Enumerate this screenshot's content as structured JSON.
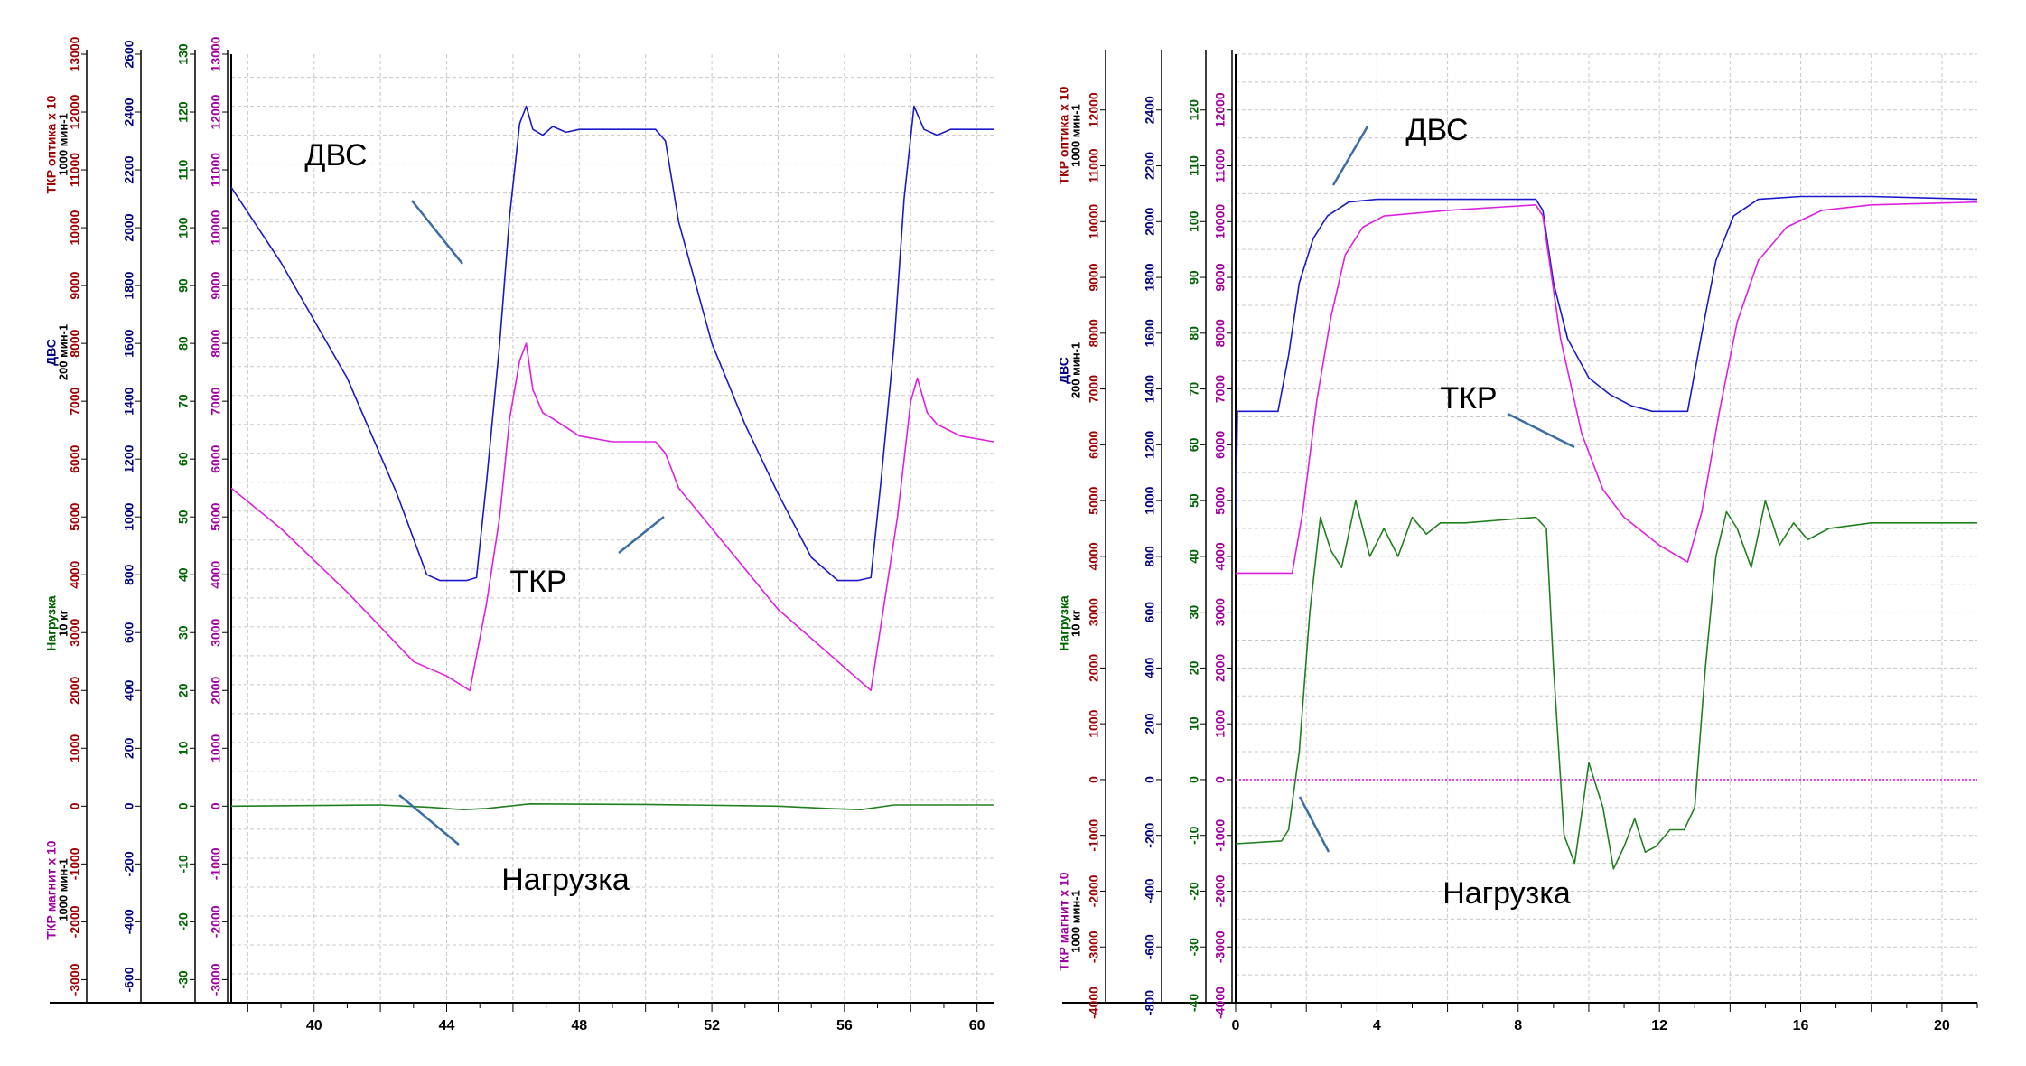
{
  "chart_data": [
    {
      "type": "line",
      "x": {
        "ticks": [
          40,
          44,
          48,
          52,
          56,
          60
        ],
        "range": [
          37.5,
          60.5
        ]
      },
      "axes": [
        {
          "name": "ticks_tkr_optic",
          "title": [
            "ТКР оптика x 10",
            "1000 мин-1"
          ],
          "color": "#a00000",
          "range": [
            -3400,
            13000
          ],
          "ticks": [
            -3000,
            -2000,
            -1000,
            0,
            1000,
            2000,
            3000,
            4000,
            5000,
            6000,
            7000,
            8000,
            9000,
            10000,
            11000,
            12000,
            13000
          ]
        },
        {
          "name": "ticks_dvs",
          "title": [
            "ДВС",
            "200 мин-1"
          ],
          "color": "#000080",
          "range": [
            -680,
            2600
          ],
          "ticks": [
            -600,
            -400,
            -200,
            0,
            200,
            400,
            600,
            800,
            1000,
            1200,
            1400,
            1600,
            1800,
            2000,
            2200,
            2400,
            2600
          ]
        },
        {
          "name": "ticks_load",
          "title": [
            "Нагрузка",
            "10 кг"
          ],
          "color": "#006400",
          "range": [
            -34,
            130
          ],
          "ticks": [
            -30,
            -20,
            -10,
            0,
            10,
            20,
            30,
            40,
            50,
            60,
            70,
            80,
            90,
            100,
            110,
            120,
            130
          ]
        },
        {
          "name": "ticks_tkr_magnit",
          "title": [
            "ТКР магнит x 10",
            "1000 мин-1"
          ],
          "color": "#a000a0",
          "range": [
            -3400,
            13000
          ],
          "ticks": [
            -3000,
            -2000,
            -1000,
            0,
            1000,
            2000,
            3000,
            4000,
            5000,
            6000,
            7000,
            8000,
            9000,
            10000,
            11000,
            12000,
            13000
          ]
        }
      ],
      "series": [
        {
          "name": "ДВС",
          "color": "#1a1acc",
          "axis": 0,
          "points": [
            [
              37.5,
              10700
            ],
            [
              39,
              9400
            ],
            [
              41,
              7400
            ],
            [
              42.5,
              5400
            ],
            [
              43.4,
              4000
            ],
            [
              43.8,
              3900
            ],
            [
              44.2,
              3900
            ],
            [
              44.6,
              3900
            ],
            [
              44.9,
              3950
            ],
            [
              45.2,
              5600
            ],
            [
              45.6,
              8000
            ],
            [
              45.9,
              10200
            ],
            [
              46.2,
              11800
            ],
            [
              46.4,
              12100
            ],
            [
              46.6,
              11700
            ],
            [
              46.9,
              11600
            ],
            [
              47.2,
              11750
            ],
            [
              47.6,
              11650
            ],
            [
              48,
              11700
            ],
            [
              49,
              11700
            ],
            [
              50.3,
              11700
            ],
            [
              50.6,
              11500
            ],
            [
              51,
              10100
            ],
            [
              52,
              8000
            ],
            [
              53,
              6600
            ],
            [
              54,
              5400
            ],
            [
              55,
              4300
            ],
            [
              55.8,
              3900
            ],
            [
              56.4,
              3900
            ],
            [
              56.8,
              3950
            ],
            [
              57.1,
              5600
            ],
            [
              57.5,
              8000
            ],
            [
              57.8,
              10500
            ],
            [
              58.1,
              12100
            ],
            [
              58.4,
              11700
            ],
            [
              58.8,
              11600
            ],
            [
              59.2,
              11700
            ],
            [
              60,
              11700
            ],
            [
              60.5,
              11700
            ]
          ]
        },
        {
          "name": "ТКР",
          "color": "#e020e0",
          "axis": 0,
          "points": [
            [
              37.5,
              5500
            ],
            [
              39,
              4800
            ],
            [
              41,
              3700
            ],
            [
              42,
              3100
            ],
            [
              43,
              2500
            ],
            [
              44,
              2250
            ],
            [
              44.7,
              2000
            ],
            [
              45.2,
              3500
            ],
            [
              45.6,
              5000
            ],
            [
              45.9,
              6700
            ],
            [
              46.2,
              7700
            ],
            [
              46.4,
              8000
            ],
            [
              46.6,
              7200
            ],
            [
              46.9,
              6800
            ],
            [
              47.2,
              6700
            ],
            [
              48,
              6400
            ],
            [
              49,
              6300
            ],
            [
              50.3,
              6300
            ],
            [
              50.6,
              6100
            ],
            [
              51,
              5500
            ],
            [
              52,
              4800
            ],
            [
              53,
              4100
            ],
            [
              54,
              3400
            ],
            [
              55,
              2900
            ],
            [
              56,
              2400
            ],
            [
              56.8,
              2000
            ],
            [
              57.2,
              3500
            ],
            [
              57.6,
              5000
            ],
            [
              58.0,
              7000
            ],
            [
              58.2,
              7400
            ],
            [
              58.5,
              6800
            ],
            [
              58.8,
              6600
            ],
            [
              59.5,
              6400
            ],
            [
              60.5,
              6300
            ]
          ]
        },
        {
          "name": "Нагрузка",
          "color": "#208020",
          "axis": 0,
          "points": [
            [
              37.5,
              0
            ],
            [
              42,
              20
            ],
            [
              43.5,
              -20
            ],
            [
              44.5,
              -60
            ],
            [
              45.2,
              -40
            ],
            [
              46.5,
              40
            ],
            [
              50,
              30
            ],
            [
              54,
              0
            ],
            [
              55.5,
              -40
            ],
            [
              56.5,
              -60
            ],
            [
              57.5,
              20
            ],
            [
              60.5,
              20
            ]
          ]
        }
      ],
      "annotations": [
        {
          "text": "ДВС"
        },
        {
          "text": "ТКР"
        },
        {
          "text": "Нагрузка"
        }
      ]
    },
    {
      "type": "line",
      "x": {
        "ticks": [
          0,
          4,
          8,
          12,
          16,
          20
        ],
        "range": [
          0,
          21
        ]
      },
      "axes": [
        {
          "name": "ticks_tkr_optic",
          "title": [
            "ТКР оптика x 10",
            "1000 мин-1"
          ],
          "color": "#a00000",
          "range": [
            -4000,
            13000
          ],
          "ticks": [
            -4000,
            -3000,
            -2000,
            -1000,
            0,
            1000,
            2000,
            3000,
            4000,
            5000,
            6000,
            7000,
            8000,
            9000,
            10000,
            11000,
            12000
          ]
        },
        {
          "name": "ticks_dvs",
          "title": [
            "ДВС",
            "200 мин-1"
          ],
          "color": "#000080",
          "range": [
            -800,
            2600
          ],
          "ticks": [
            -800,
            -600,
            -400,
            -200,
            0,
            200,
            400,
            600,
            800,
            1000,
            1200,
            1400,
            1600,
            1800,
            2000,
            2200,
            2400
          ]
        },
        {
          "name": "ticks_load",
          "title": [
            "Нагрузка",
            "10 кг"
          ],
          "color": "#006400",
          "range": [
            -40,
            130
          ],
          "ticks": [
            -40,
            -30,
            -20,
            -10,
            0,
            10,
            20,
            30,
            40,
            50,
            60,
            70,
            80,
            90,
            100,
            110,
            120
          ]
        },
        {
          "name": "ticks_tkr_magnit",
          "title": [
            "ТКР магнит x 10",
            "1000 мин-1"
          ],
          "color": "#a000a0",
          "range": [
            -4000,
            13000
          ],
          "ticks": [
            -4000,
            -3000,
            -2000,
            -1000,
            0,
            1000,
            2000,
            3000,
            4000,
            5000,
            6000,
            7000,
            8000,
            9000,
            10000,
            11000,
            12000
          ]
        }
      ],
      "series": [
        {
          "name": "ДВС",
          "color": "#1a1acc",
          "axis": 0,
          "points": [
            [
              0,
              4500
            ],
            [
              0.05,
              6600
            ],
            [
              1.2,
              6600
            ],
            [
              1.5,
              7600
            ],
            [
              1.8,
              8900
            ],
            [
              2.2,
              9700
            ],
            [
              2.6,
              10100
            ],
            [
              3.2,
              10350
            ],
            [
              4,
              10400
            ],
            [
              6,
              10400
            ],
            [
              8.5,
              10400
            ],
            [
              8.7,
              10200
            ],
            [
              9,
              8900
            ],
            [
              9.4,
              7900
            ],
            [
              10,
              7200
            ],
            [
              10.6,
              6900
            ],
            [
              11.2,
              6700
            ],
            [
              11.8,
              6600
            ],
            [
              12.8,
              6600
            ],
            [
              13.2,
              8000
            ],
            [
              13.6,
              9300
            ],
            [
              14.1,
              10100
            ],
            [
              14.8,
              10400
            ],
            [
              16,
              10450
            ],
            [
              18,
              10450
            ],
            [
              21,
              10400
            ]
          ]
        },
        {
          "name": "ТКР",
          "color": "#e020e0",
          "axis": 0,
          "points": [
            [
              0,
              3700
            ],
            [
              1.6,
              3700
            ],
            [
              1.9,
              4800
            ],
            [
              2.3,
              6800
            ],
            [
              2.7,
              8300
            ],
            [
              3.1,
              9400
            ],
            [
              3.6,
              9900
            ],
            [
              4.2,
              10100
            ],
            [
              6,
              10200
            ],
            [
              8.5,
              10300
            ],
            [
              8.7,
              10100
            ],
            [
              9.2,
              7900
            ],
            [
              9.8,
              6200
            ],
            [
              10.4,
              5200
            ],
            [
              11,
              4700
            ],
            [
              12,
              4200
            ],
            [
              12.8,
              3900
            ],
            [
              13.2,
              4800
            ],
            [
              13.7,
              6600
            ],
            [
              14.2,
              8200
            ],
            [
              14.8,
              9300
            ],
            [
              15.6,
              9900
            ],
            [
              16.6,
              10200
            ],
            [
              18,
              10300
            ],
            [
              21,
              10350
            ]
          ]
        },
        {
          "name": "Нагрузка",
          "color": "#208020",
          "axis": 2,
          "points": [
            [
              0,
              -11.5
            ],
            [
              1.3,
              -11
            ],
            [
              1.5,
              -9
            ],
            [
              1.8,
              5
            ],
            [
              2.1,
              30
            ],
            [
              2.4,
              47
            ],
            [
              2.7,
              41
            ],
            [
              3.0,
              38
            ],
            [
              3.4,
              50
            ],
            [
              3.8,
              40
            ],
            [
              4.2,
              45
            ],
            [
              4.6,
              40
            ],
            [
              5.0,
              47
            ],
            [
              5.4,
              44
            ],
            [
              5.8,
              46
            ],
            [
              6.5,
              46
            ],
            [
              8.5,
              47
            ],
            [
              8.8,
              45
            ],
            [
              9.0,
              20
            ],
            [
              9.3,
              -10
            ],
            [
              9.6,
              -15
            ],
            [
              10.0,
              3
            ],
            [
              10.4,
              -5
            ],
            [
              10.7,
              -16
            ],
            [
              11.0,
              -12
            ],
            [
              11.3,
              -7
            ],
            [
              11.6,
              -13
            ],
            [
              11.9,
              -12
            ],
            [
              12.3,
              -9
            ],
            [
              12.7,
              -9
            ],
            [
              13.0,
              -5
            ],
            [
              13.3,
              20
            ],
            [
              13.6,
              40
            ],
            [
              13.9,
              48
            ],
            [
              14.2,
              45
            ],
            [
              14.6,
              38
            ],
            [
              15.0,
              50
            ],
            [
              15.4,
              42
            ],
            [
              15.8,
              46
            ],
            [
              16.2,
              43
            ],
            [
              16.8,
              45
            ],
            [
              18,
              46
            ],
            [
              21,
              46
            ]
          ]
        },
        {
          "name": "ТКР магнит x 10",
          "color": "#e020e0",
          "axis": 0,
          "points": [
            [
              0,
              0
            ],
            [
              21,
              0
            ]
          ]
        }
      ],
      "annotations": [
        {
          "text": "ДВС"
        },
        {
          "text": "ТКР"
        },
        {
          "text": "Нагрузка"
        }
      ]
    }
  ]
}
